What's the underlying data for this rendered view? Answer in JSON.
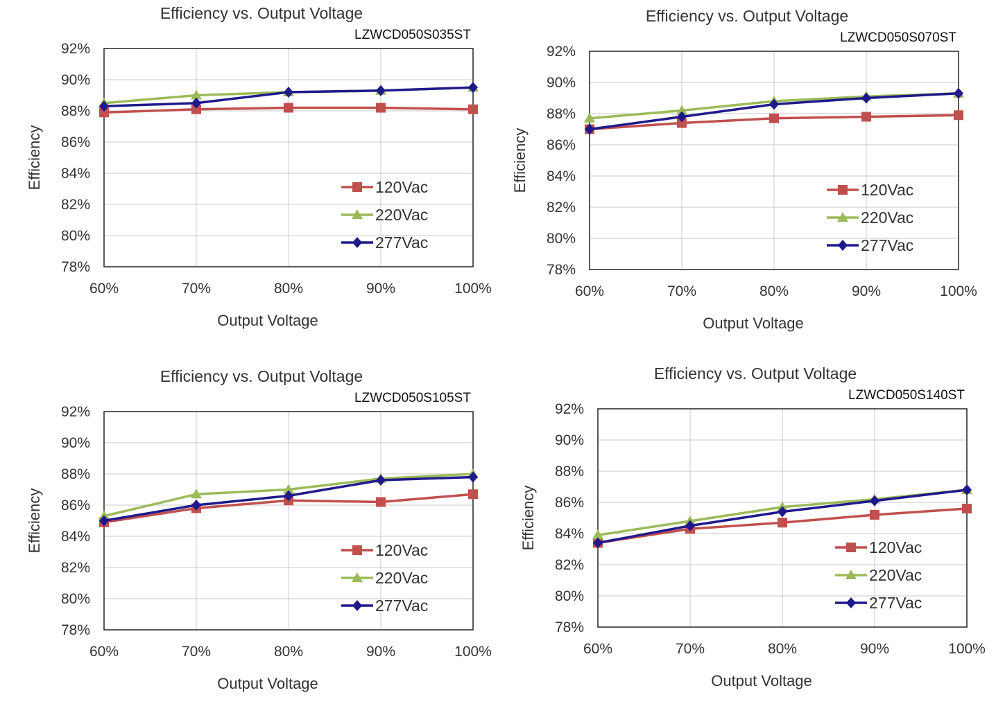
{
  "chart_data": [
    {
      "type": "line",
      "title": "Efficiency vs. Output Voltage",
      "model": "LZWCD050S035ST",
      "xlabel": "Output Voltage",
      "ylabel": "Efficiency",
      "categories": [
        "60%",
        "70%",
        "80%",
        "90%",
        "100%"
      ],
      "yticks": [
        "78%",
        "80%",
        "82%",
        "84%",
        "86%",
        "88%",
        "90%",
        "92%"
      ],
      "ylim": [
        78,
        92
      ],
      "grid": true,
      "legend": "bottom-right",
      "series": [
        {
          "name": "120Vac",
          "color": "#c0504d",
          "marker": "square",
          "values": [
            87.9,
            88.1,
            88.2,
            88.2,
            88.1
          ]
        },
        {
          "name": "220Vac",
          "color": "#9bbb59",
          "marker": "triangle",
          "values": [
            88.5,
            89.0,
            89.2,
            89.3,
            89.5
          ]
        },
        {
          "name": "277Vac",
          "color": "#1f1a8c",
          "marker": "diamond",
          "values": [
            88.3,
            88.5,
            89.2,
            89.3,
            89.5
          ]
        }
      ]
    },
    {
      "type": "line",
      "title": "Efficiency vs. Output Voltage",
      "model": "LZWCD050S070ST",
      "xlabel": "Output Voltage",
      "ylabel": "Efficiency",
      "categories": [
        "60%",
        "70%",
        "80%",
        "90%",
        "100%"
      ],
      "yticks": [
        "78%",
        "80%",
        "82%",
        "84%",
        "86%",
        "88%",
        "90%",
        "92%"
      ],
      "ylim": [
        78,
        92
      ],
      "grid": true,
      "legend": "bottom-right",
      "series": [
        {
          "name": "120Vac",
          "color": "#c0504d",
          "marker": "square",
          "values": [
            87.0,
            87.4,
            87.7,
            87.8,
            87.9
          ]
        },
        {
          "name": "220Vac",
          "color": "#9bbb59",
          "marker": "triangle",
          "values": [
            87.7,
            88.2,
            88.8,
            89.1,
            89.3
          ]
        },
        {
          "name": "277Vac",
          "color": "#1f1a8c",
          "marker": "diamond",
          "values": [
            87.0,
            87.8,
            88.6,
            89.0,
            89.3
          ]
        }
      ]
    },
    {
      "type": "line",
      "title": "Efficiency vs. Output Voltage",
      "model": "LZWCD050S105ST",
      "xlabel": "Output Voltage",
      "ylabel": "Efficiency",
      "categories": [
        "60%",
        "70%",
        "80%",
        "90%",
        "100%"
      ],
      "yticks": [
        "78%",
        "80%",
        "82%",
        "84%",
        "86%",
        "88%",
        "90%",
        "92%"
      ],
      "ylim": [
        78,
        92
      ],
      "grid": true,
      "legend": "bottom-right",
      "series": [
        {
          "name": "120Vac",
          "color": "#c0504d",
          "marker": "square",
          "values": [
            84.9,
            85.8,
            86.3,
            86.2,
            86.7
          ]
        },
        {
          "name": "220Vac",
          "color": "#9bbb59",
          "marker": "triangle",
          "values": [
            85.3,
            86.7,
            87.0,
            87.7,
            88.0
          ]
        },
        {
          "name": "277Vac",
          "color": "#1f1a8c",
          "marker": "diamond",
          "values": [
            85.0,
            86.0,
            86.6,
            87.6,
            87.8
          ]
        }
      ]
    },
    {
      "type": "line",
      "title": "Efficiency vs. Output Voltage",
      "model": "LZWCD050S140ST",
      "xlabel": "Output Voltage",
      "ylabel": "Efficiency",
      "categories": [
        "60%",
        "70%",
        "80%",
        "90%",
        "100%"
      ],
      "yticks": [
        "78%",
        "80%",
        "82%",
        "84%",
        "86%",
        "88%",
        "90%",
        "92%"
      ],
      "ylim": [
        78,
        92
      ],
      "grid": true,
      "legend": "bottom-right",
      "series": [
        {
          "name": "120Vac",
          "color": "#c0504d",
          "marker": "square",
          "values": [
            83.4,
            84.3,
            84.7,
            85.2,
            85.6
          ]
        },
        {
          "name": "220Vac",
          "color": "#9bbb59",
          "marker": "triangle",
          "values": [
            83.9,
            84.8,
            85.7,
            86.2,
            86.8
          ]
        },
        {
          "name": "277Vac",
          "color": "#1f1a8c",
          "marker": "diamond",
          "values": [
            83.4,
            84.5,
            85.4,
            86.1,
            86.8
          ]
        }
      ]
    }
  ]
}
